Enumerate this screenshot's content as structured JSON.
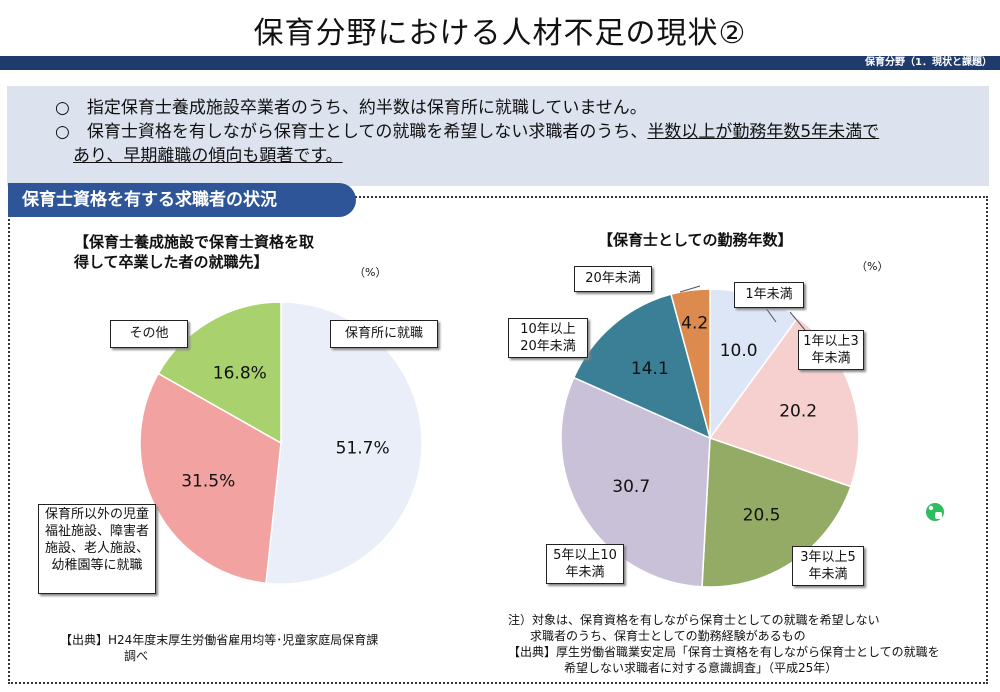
{
  "title": "保育分野における人材不足の現状②",
  "header_bar": {
    "label": "保育分野（1．現状と課題）"
  },
  "summary": {
    "line1": "○　指定保育士養成施設卒業者のうち、約半数は保育所に就職していません。",
    "line2_prefix": "○　保育士資格を有しながら保育士としての就職を希望しない求職者のうち、",
    "line2_underlined": "半数以上が勤務年数5年未満で",
    "line3": "あり、早期離職の傾向も顕著です。"
  },
  "section_tab": "保育士資格を有する求職者の状況",
  "left": {
    "title_line1": "【保育士養成施設で保育士資格を取",
    "title_line2": "得して卒業した者の就職先】",
    "unit": "（%）",
    "source_line1": "【出典】H24年度末厚生労働省雇用均等･児童家庭局保育課",
    "source_line2": "調べ"
  },
  "right": {
    "title": "【保育士としての勤務年数】",
    "unit": "（%）",
    "note_line1": "注）対象は、保育資格を有しながら保育士としての就職を希望しない",
    "note_line2": "求職者のうち、保育士としての勤務経験があるもの",
    "source_line1": "【出典】厚生労働省職業安定局「保育士資格を有しながら保育士としての就職を",
    "source_line2": "希望しない求職者に対する意識調査」（平成25年）"
  },
  "chart_data": [
    {
      "type": "pie",
      "title": "【保育士養成施設で保育士資格を取得して卒業した者の就職先】",
      "unit": "%",
      "slices": [
        {
          "label": "保育所に就職",
          "value": 51.7,
          "display": "51.7%",
          "color": "#e9eef8"
        },
        {
          "label": "保育所以外の児童福祉施設、障害者施設、老人施設、幼稚園等に就職",
          "value": 31.5,
          "display": "31.5%",
          "color": "#f2a3a1"
        },
        {
          "label": "その他",
          "value": 16.8,
          "display": "16.8%",
          "color": "#a9d26e"
        }
      ]
    },
    {
      "type": "pie",
      "title": "【保育士としての勤務年数】",
      "unit": "%",
      "slices": [
        {
          "label": "1年未満",
          "value": 10.0,
          "display": "10.0",
          "color": "#dde6f7"
        },
        {
          "label": "1年以上3年未満",
          "value": 20.2,
          "display": "20.2",
          "color": "#f6d0cf"
        },
        {
          "label": "3年以上5年未満",
          "value": 20.5,
          "display": "20.5",
          "color": "#94ab66"
        },
        {
          "label": "5年以上10年未満",
          "value": 30.7,
          "display": "30.7",
          "color": "#c9c1d8"
        },
        {
          "label": "10年以上20年未満",
          "value": 14.1,
          "display": "14.1",
          "color": "#3a7f95"
        },
        {
          "label": "20年未満",
          "value": 4.2,
          "display": "4.2",
          "color": "#dc8a4e"
        }
      ]
    }
  ]
}
